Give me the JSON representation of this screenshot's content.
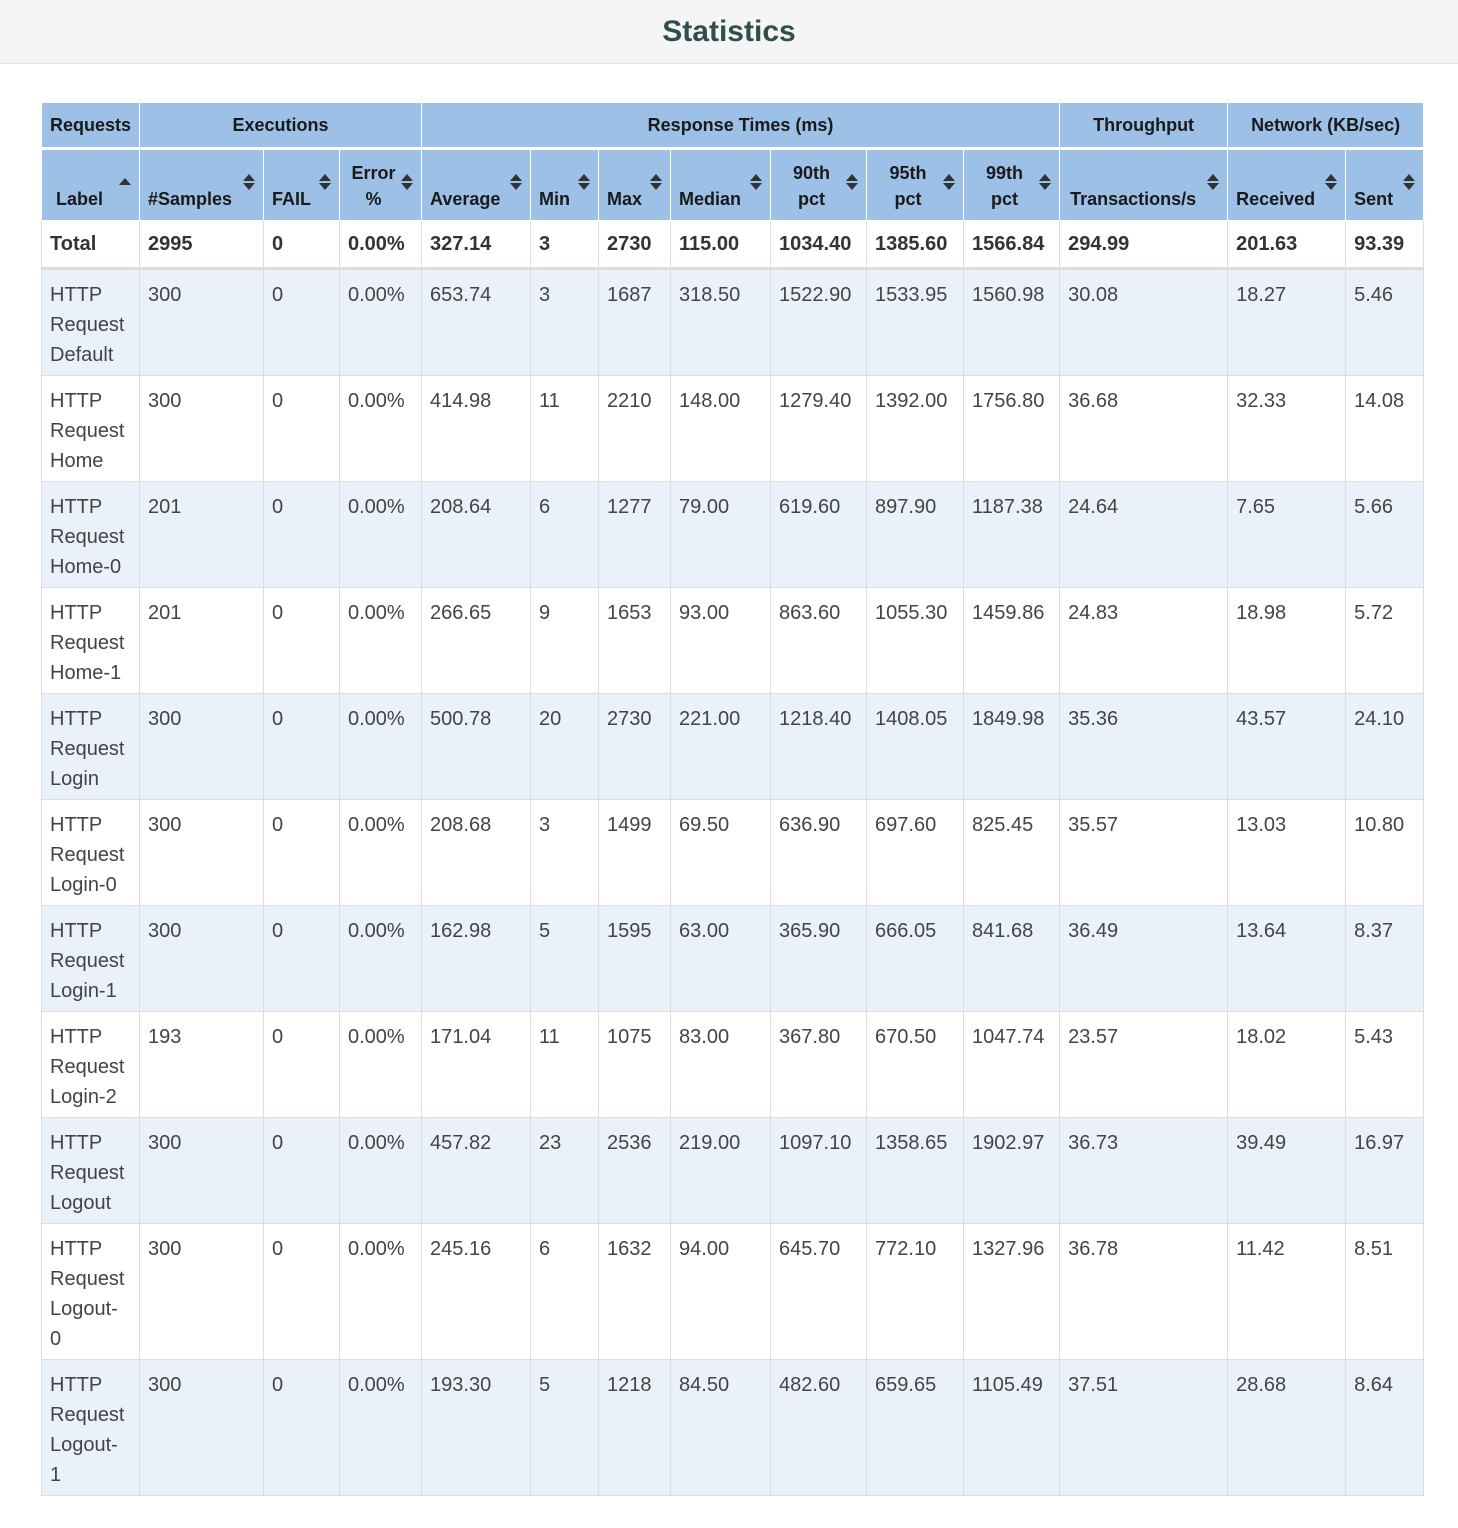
{
  "page": {
    "title": "Statistics"
  },
  "groups": {
    "requests": "Requests",
    "executions": "Executions",
    "response_times": "Response Times (ms)",
    "throughput": "Throughput",
    "network": "Network (KB/sec)"
  },
  "columns": {
    "label": "Label",
    "samples": "#Samples",
    "fail": "FAIL",
    "error_l1": "Error",
    "error_l2": "%",
    "average": "Average",
    "min": "Min",
    "max": "Max",
    "median": "Median",
    "p90_l1": "90th",
    "p90_l2": "pct",
    "p95_l1": "95th",
    "p95_l2": "pct",
    "p99_l1": "99th",
    "p99_l2": "pct",
    "transactions": "Transactions/s",
    "received": "Received",
    "sent": "Sent"
  },
  "total": [
    "Total",
    "2995",
    "0",
    "0.00%",
    "327.14",
    "3",
    "2730",
    "115.00",
    "1034.40",
    "1385.60",
    "1566.84",
    "294.99",
    "201.63",
    "93.39"
  ],
  "rows": [
    {
      "label_lines": [
        "HTTP",
        "Request",
        "Default"
      ],
      "cells": [
        "300",
        "0",
        "0.00%",
        "653.74",
        "3",
        "1687",
        "318.50",
        "1522.90",
        "1533.95",
        "1560.98",
        "30.08",
        "18.27",
        "5.46"
      ]
    },
    {
      "label_lines": [
        "HTTP",
        "Request",
        "Home"
      ],
      "cells": [
        "300",
        "0",
        "0.00%",
        "414.98",
        "11",
        "2210",
        "148.00",
        "1279.40",
        "1392.00",
        "1756.80",
        "36.68",
        "32.33",
        "14.08"
      ]
    },
    {
      "label_lines": [
        "HTTP",
        "Request",
        "Home-0"
      ],
      "cells": [
        "201",
        "0",
        "0.00%",
        "208.64",
        "6",
        "1277",
        "79.00",
        "619.60",
        "897.90",
        "1187.38",
        "24.64",
        "7.65",
        "5.66"
      ]
    },
    {
      "label_lines": [
        "HTTP",
        "Request",
        "Home-1"
      ],
      "cells": [
        "201",
        "0",
        "0.00%",
        "266.65",
        "9",
        "1653",
        "93.00",
        "863.60",
        "1055.30",
        "1459.86",
        "24.83",
        "18.98",
        "5.72"
      ]
    },
    {
      "label_lines": [
        "HTTP",
        "Request",
        "Login"
      ],
      "cells": [
        "300",
        "0",
        "0.00%",
        "500.78",
        "20",
        "2730",
        "221.00",
        "1218.40",
        "1408.05",
        "1849.98",
        "35.36",
        "43.57",
        "24.10"
      ]
    },
    {
      "label_lines": [
        "HTTP",
        "Request",
        "Login-0"
      ],
      "cells": [
        "300",
        "0",
        "0.00%",
        "208.68",
        "3",
        "1499",
        "69.50",
        "636.90",
        "697.60",
        "825.45",
        "35.57",
        "13.03",
        "10.80"
      ]
    },
    {
      "label_lines": [
        "HTTP",
        "Request",
        "Login-1"
      ],
      "cells": [
        "300",
        "0",
        "0.00%",
        "162.98",
        "5",
        "1595",
        "63.00",
        "365.90",
        "666.05",
        "841.68",
        "36.49",
        "13.64",
        "8.37"
      ]
    },
    {
      "label_lines": [
        "HTTP",
        "Request",
        "Login-2"
      ],
      "cells": [
        "193",
        "0",
        "0.00%",
        "171.04",
        "11",
        "1075",
        "83.00",
        "367.80",
        "670.50",
        "1047.74",
        "23.57",
        "18.02",
        "5.43"
      ]
    },
    {
      "label_lines": [
        "HTTP",
        "Request",
        "Logout"
      ],
      "cells": [
        "300",
        "0",
        "0.00%",
        "457.82",
        "23",
        "2536",
        "219.00",
        "1097.10",
        "1358.65",
        "1902.97",
        "36.73",
        "39.49",
        "16.97"
      ]
    },
    {
      "label_lines": [
        "HTTP",
        "Request",
        "Logout-",
        "0"
      ],
      "cells": [
        "300",
        "0",
        "0.00%",
        "245.16",
        "6",
        "1632",
        "94.00",
        "645.70",
        "772.10",
        "1327.96",
        "36.78",
        "11.42",
        "8.51"
      ]
    },
    {
      "label_lines": [
        "HTTP",
        "Request",
        "Logout-",
        "1"
      ],
      "cells": [
        "300",
        "0",
        "0.00%",
        "193.30",
        "5",
        "1218",
        "84.50",
        "482.60",
        "659.65",
        "1105.49",
        "37.51",
        "28.68",
        "8.64"
      ]
    }
  ]
}
